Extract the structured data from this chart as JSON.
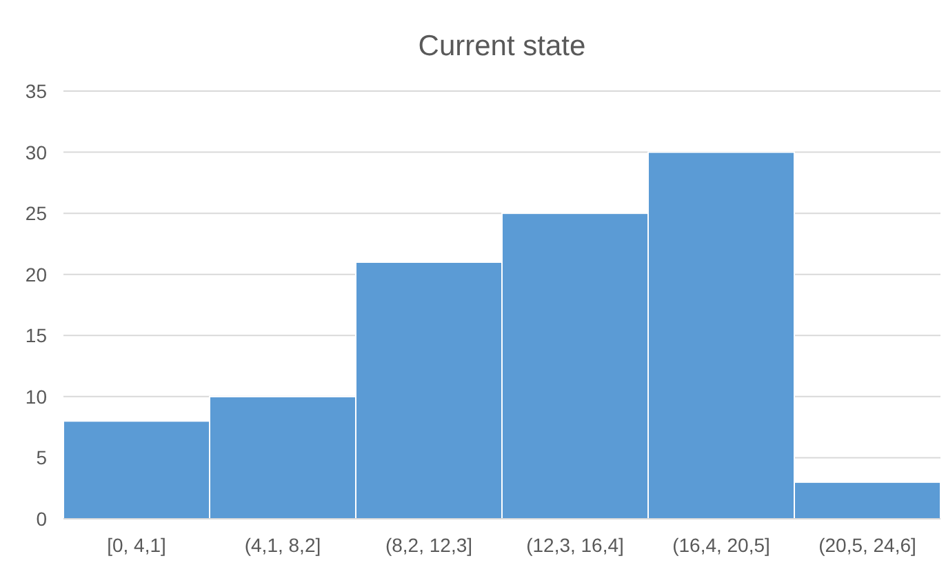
{
  "chart_data": {
    "type": "bar",
    "title": "Current state",
    "categories": [
      "[0, 4,1]",
      "(4,1, 8,2]",
      "(8,2, 12,3]",
      "(12,3, 16,4]",
      "(16,4, 20,5]",
      "(20,5, 24,6]"
    ],
    "values": [
      8,
      10,
      21,
      25,
      30,
      3
    ],
    "color": "#5b9bd5",
    "ylim": [
      0,
      35
    ],
    "yticks": [
      0,
      5,
      10,
      15,
      20,
      25,
      30,
      35
    ],
    "grid": "y"
  }
}
